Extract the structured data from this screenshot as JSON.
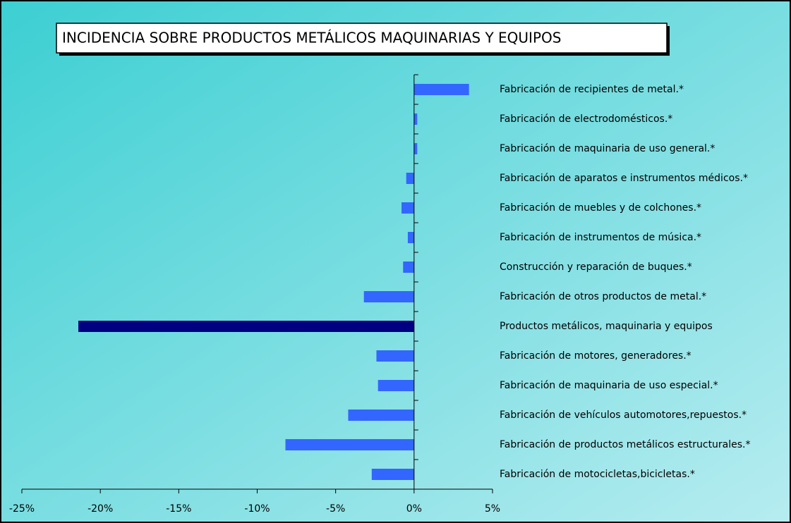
{
  "chart_data": {
    "type": "barh",
    "title": "INCIDENCIA SOBRE PRODUCTOS METÁLICOS MAQUINARIAS Y EQUIPOS",
    "categories": [
      "Fabricación de recipientes de metal.*",
      "Fabricación de electrodomésticos.*",
      "Fabricación de maquinaria de uso general.*",
      "Fabricación de aparatos e instrumentos médicos.*",
      "Fabricación de muebles y de colchones.*",
      "Fabricación de instrumentos de música.*",
      "Construcción y reparación de buques.*",
      "Fabricación de otros productos de metal.*",
      "Productos metálicos, maquinaria y equipos",
      "Fabricación de motores, generadores.*",
      "Fabricación de maquinaria de uso especial.*",
      "Fabricación de vehículos automotores,repuestos.*",
      "Fabricación de productos metálicos estructurales.*",
      "Fabricación de motocicletas,bicicletas.*"
    ],
    "values": [
      3.5,
      0.2,
      0.2,
      -0.5,
      -0.8,
      -0.4,
      -0.7,
      -3.2,
      -21.4,
      -2.4,
      -2.3,
      -4.2,
      -8.2,
      -2.7
    ],
    "colors": [
      "#3366ff",
      "#3366ff",
      "#3366ff",
      "#3366ff",
      "#3366ff",
      "#3366ff",
      "#3366ff",
      "#3366ff",
      "#000080",
      "#3366ff",
      "#3366ff",
      "#3366ff",
      "#3366ff",
      "#3366ff"
    ],
    "xlim": [
      -25,
      5
    ],
    "xticks": [
      {
        "value": -25,
        "label": "-25%"
      },
      {
        "value": -20,
        "label": "-20%"
      },
      {
        "value": -15,
        "label": "-15%"
      },
      {
        "value": -10,
        "label": "-10%"
      },
      {
        "value": -5,
        "label": "-5%"
      },
      {
        "value": 0,
        "label": "0%"
      },
      {
        "value": 5,
        "label": "5%"
      }
    ]
  }
}
